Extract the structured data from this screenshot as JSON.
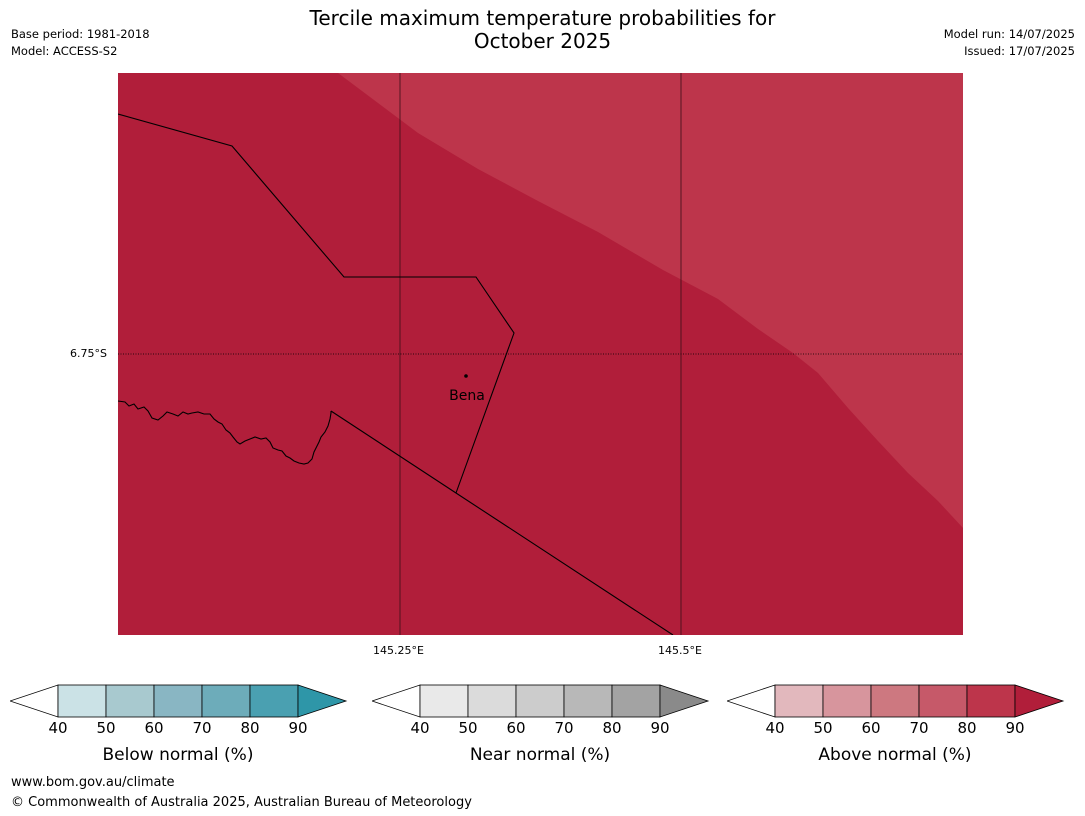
{
  "title_line1": "Tercile maximum temperature probabilities for",
  "title_line2": "October 2025",
  "meta_left": {
    "base_period": "Base period: 1981-2018",
    "model": "Model: ACCESS-S2"
  },
  "meta_right": {
    "model_run": "Model run: 14/07/2025",
    "issued": "Issued: 17/07/2025"
  },
  "map": {
    "place_name": "Bena",
    "lat_label": "6.75°S",
    "lon_labels": [
      "145.25°E",
      "145.5°E"
    ],
    "shading_colors": {
      "dark": "#b11e3a",
      "light": "#bd354b"
    }
  },
  "colorbars": [
    {
      "label": "Below normal (%)",
      "ticks": [
        "40",
        "50",
        "60",
        "70",
        "80",
        "90"
      ],
      "colors": [
        "#cbe2e6",
        "#a8c9cf",
        "#89b6c3",
        "#6dacba",
        "#4aa0b1",
        "#2e96a8"
      ]
    },
    {
      "label": "Near normal (%)",
      "ticks": [
        "40",
        "50",
        "60",
        "70",
        "80",
        "90"
      ],
      "colors": [
        "#e9e9e9",
        "#dbdbdb",
        "#cccccc",
        "#b8b8b8",
        "#a3a3a3",
        "#8a8a8a"
      ]
    },
    {
      "label": "Above normal (%)",
      "ticks": [
        "40",
        "50",
        "60",
        "70",
        "80",
        "90"
      ],
      "colors": [
        "#e2b8bd",
        "#d7959d",
        "#cd7880",
        "#c65969",
        "#bd354b",
        "#b11e3a"
      ]
    }
  ],
  "footer": {
    "url": "www.bom.gov.au/climate",
    "copyright": "© Commonwealth of Australia 2025, Australian Bureau of Meteorology"
  }
}
